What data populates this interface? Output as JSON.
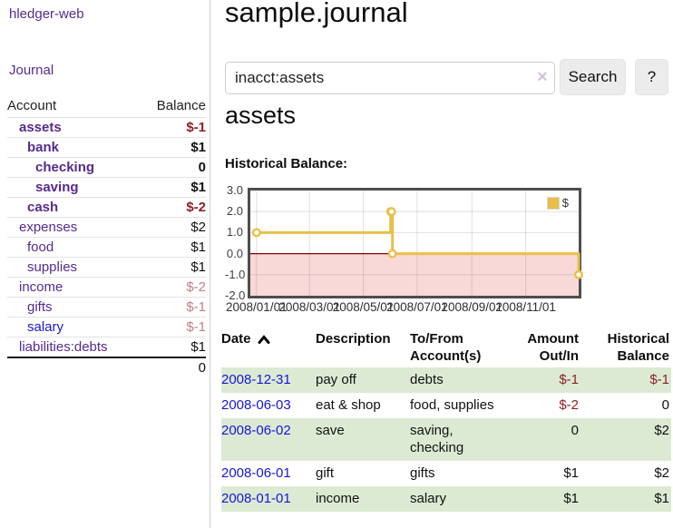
{
  "app": {
    "brand": "hledger-web",
    "nav_journal": "Journal"
  },
  "colors": {
    "link_purple": "#562a8f",
    "link_blue": "#1717d6",
    "negative": "#8c2026",
    "negative_light": "#c08084",
    "row_green": "#dcead4",
    "chart_gold": "#e8c049",
    "chart_negative_fill": "#f9d8d8",
    "chart_zero_line": "#8b0000"
  },
  "sidebar": {
    "header": {
      "account": "Account",
      "balance": "Balance"
    },
    "accounts": [
      {
        "name": "assets",
        "balance": "$-1",
        "level": 1,
        "bold": true,
        "balance_tone": "negative-strong",
        "link_tone": "purple"
      },
      {
        "name": "bank",
        "balance": "$1",
        "level": 2,
        "bold": true,
        "balance_tone": "normal",
        "link_tone": "purple"
      },
      {
        "name": "checking",
        "balance": "0",
        "level": 3,
        "bold": true,
        "balance_tone": "normal",
        "link_tone": "purple"
      },
      {
        "name": "saving",
        "balance": "$1",
        "level": 3,
        "bold": true,
        "balance_tone": "normal",
        "link_tone": "purple"
      },
      {
        "name": "cash",
        "balance": "$-2",
        "level": 2,
        "bold": true,
        "balance_tone": "negative-strong",
        "link_tone": "purple"
      },
      {
        "name": "expenses",
        "balance": "$2",
        "level": 1,
        "bold": false,
        "balance_tone": "normal",
        "link_tone": "purple"
      },
      {
        "name": "food",
        "balance": "$1",
        "level": 2,
        "bold": false,
        "balance_tone": "normal",
        "link_tone": "purple"
      },
      {
        "name": "supplies",
        "balance": "$1",
        "level": 2,
        "bold": false,
        "balance_tone": "normal",
        "link_tone": "purple"
      },
      {
        "name": "income",
        "balance": "$-2",
        "level": 1,
        "bold": false,
        "balance_tone": "negative-light",
        "link_tone": "purple"
      },
      {
        "name": "gifts",
        "balance": "$-1",
        "level": 2,
        "bold": false,
        "balance_tone": "negative-light",
        "link_tone": "purple"
      },
      {
        "name": "salary",
        "balance": "$-1",
        "level": 2,
        "bold": false,
        "balance_tone": "negative-light",
        "link_tone": "blue"
      },
      {
        "name": "liabilities:debts",
        "balance": "$1",
        "level": 1,
        "bold": false,
        "balance_tone": "normal",
        "link_tone": "purple"
      }
    ],
    "total": "0"
  },
  "header": {
    "title": "sample.journal"
  },
  "search": {
    "value": "inacct:assets",
    "clear_glyph": "×",
    "button_label": "Search",
    "help_label": "?"
  },
  "account_page": {
    "title": "assets",
    "chart_label": "Historical Balance:"
  },
  "chart_data": {
    "type": "line",
    "mode": "steps",
    "title": "Historical Balance",
    "legend": "$",
    "legend_position": "top-right",
    "grid": true,
    "x_range": [
      "2007-12-25",
      "2008-12-31"
    ],
    "y_range": [
      -2,
      3
    ],
    "y_ticks": [
      {
        "value": 3,
        "label": "3.0"
      },
      {
        "value": 2,
        "label": "2.0"
      },
      {
        "value": 1,
        "label": "1.0"
      },
      {
        "value": 0,
        "label": "0.0"
      },
      {
        "value": -1,
        "label": "-1.0"
      },
      {
        "value": -2,
        "label": "-2.0"
      }
    ],
    "x_ticks": [
      {
        "date": "2008-01-01",
        "label": "2008/01/01"
      },
      {
        "date": "2008-03-01",
        "label": "2008/03/01"
      },
      {
        "date": "2008-05-01",
        "label": "2008/05/01"
      },
      {
        "date": "2008-07-01",
        "label": "2008/07/01"
      },
      {
        "date": "2008-09-01",
        "label": "2008/09/01"
      },
      {
        "date": "2008-11-01",
        "label": "2008/11/01"
      }
    ],
    "series": [
      {
        "name": "$",
        "color": "#e8c049",
        "points": [
          {
            "date": "2008-01-01",
            "value": 1
          },
          {
            "date": "2008-06-01",
            "value": 2
          },
          {
            "date": "2008-06-02",
            "value": 2
          },
          {
            "date": "2008-06-03",
            "value": 0
          },
          {
            "date": "2008-12-31",
            "value": -1
          }
        ]
      }
    ],
    "negative_region_fill": "#f9d8d8",
    "zero_line_color": "#8b0000"
  },
  "register": {
    "columns": [
      {
        "label": "Date",
        "align": "left",
        "sorted": "ascending"
      },
      {
        "label": "Description",
        "align": "left"
      },
      {
        "label": "To/From\nAccount(s)",
        "align": "left"
      },
      {
        "label": "Amount\nOut/In",
        "align": "right"
      },
      {
        "label": "Historical\nBalance",
        "align": "right"
      }
    ],
    "rows": [
      {
        "date": "2008-12-31",
        "description": "pay off",
        "accounts": [
          "debts"
        ],
        "amount": "$-1",
        "amount_tone": "negative",
        "balance": "$-1",
        "balance_tone": "negative"
      },
      {
        "date": "2008-06-03",
        "description": "eat & shop",
        "accounts": [
          "food, supplies"
        ],
        "amount": "$-2",
        "amount_tone": "negative",
        "balance": "0",
        "balance_tone": "normal"
      },
      {
        "date": "2008-06-02",
        "description": "save",
        "accounts": [
          "saving,",
          "checking"
        ],
        "amount": "0",
        "amount_tone": "normal",
        "balance": "$2",
        "balance_tone": "normal"
      },
      {
        "date": "2008-06-01",
        "description": "gift",
        "accounts": [
          "gifts"
        ],
        "amount": "$1",
        "amount_tone": "normal",
        "balance": "$2",
        "balance_tone": "normal"
      },
      {
        "date": "2008-01-01",
        "description": "income",
        "accounts": [
          "salary"
        ],
        "amount": "$1",
        "amount_tone": "normal",
        "balance": "$1",
        "balance_tone": "normal"
      }
    ]
  }
}
